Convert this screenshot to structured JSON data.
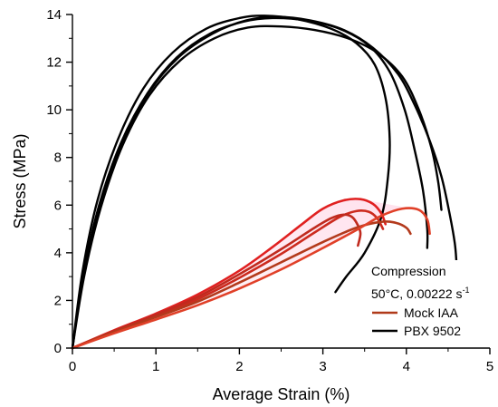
{
  "chart_data": {
    "type": "line",
    "xlabel": "Average Strain (%)",
    "ylabel": "Stress (MPa)",
    "xlim": [
      0,
      5
    ],
    "ylim": [
      0,
      14
    ],
    "xticks": [
      0,
      1,
      2,
      3,
      4,
      5
    ],
    "yticks": [
      0,
      2,
      4,
      6,
      8,
      10,
      12,
      14
    ],
    "xtick_labels": [
      "0",
      "1",
      "2",
      "3",
      "4",
      "5"
    ],
    "ytick_labels": [
      "0",
      "2",
      "4",
      "6",
      "8",
      "10",
      "12",
      "14"
    ],
    "grid": false,
    "legend": {
      "placement": "bottom-right",
      "title_line1": "Compression",
      "title_line2_main": "50°C, 0.00222 s",
      "title_line2_sup": "-1",
      "entries": [
        {
          "label": "Mock IAA",
          "color": "#b03a1a"
        },
        {
          "label": "PBX 9502",
          "color": "#000000"
        }
      ]
    },
    "series": [
      {
        "name": "PBX 9502",
        "color": "#000000",
        "points": [
          [
            0,
            0
          ],
          [
            0.12,
            3.2
          ],
          [
            0.3,
            6.2
          ],
          [
            0.55,
            8.8
          ],
          [
            0.85,
            10.9
          ],
          [
            1.2,
            12.4
          ],
          [
            1.6,
            13.4
          ],
          [
            2.0,
            13.85
          ],
          [
            2.3,
            13.95
          ],
          [
            2.7,
            13.8
          ],
          [
            3.1,
            13.4
          ],
          [
            3.4,
            12.8
          ],
          [
            3.62,
            11.9
          ],
          [
            3.75,
            10.5
          ],
          [
            3.8,
            8.8
          ],
          [
            3.78,
            7.2
          ],
          [
            3.7,
            5.5
          ],
          [
            3.5,
            4.0
          ],
          [
            3.28,
            3.0
          ],
          [
            3.15,
            2.35
          ]
        ]
      },
      {
        "name": "PBX 9502",
        "color": "#000000",
        "points": [
          [
            0,
            0
          ],
          [
            0.13,
            3.1
          ],
          [
            0.32,
            6.0
          ],
          [
            0.58,
            8.6
          ],
          [
            0.9,
            10.7
          ],
          [
            1.25,
            12.2
          ],
          [
            1.65,
            13.2
          ],
          [
            2.05,
            13.7
          ],
          [
            2.4,
            13.85
          ],
          [
            2.8,
            13.75
          ],
          [
            3.2,
            13.4
          ],
          [
            3.55,
            12.7
          ],
          [
            3.8,
            11.6
          ],
          [
            3.98,
            10.0
          ],
          [
            4.1,
            8.3
          ],
          [
            4.2,
            6.6
          ],
          [
            4.25,
            5.0
          ],
          [
            4.25,
            4.2
          ]
        ]
      },
      {
        "name": "PBX 9502",
        "color": "#000000",
        "points": [
          [
            0,
            0
          ],
          [
            0.14,
            3.0
          ],
          [
            0.34,
            5.9
          ],
          [
            0.6,
            8.5
          ],
          [
            0.92,
            10.6
          ],
          [
            1.3,
            12.1
          ],
          [
            1.7,
            13.0
          ],
          [
            2.1,
            13.45
          ],
          [
            2.5,
            13.5
          ],
          [
            2.9,
            13.35
          ],
          [
            3.3,
            13.0
          ],
          [
            3.65,
            12.4
          ],
          [
            3.95,
            11.4
          ],
          [
            4.15,
            10.0
          ],
          [
            4.3,
            8.4
          ],
          [
            4.38,
            7.0
          ],
          [
            4.42,
            5.8
          ]
        ]
      },
      {
        "name": "PBX 9502",
        "color": "#000000",
        "points": [
          [
            0,
            0
          ],
          [
            0.13,
            3.1
          ],
          [
            0.33,
            6.0
          ],
          [
            0.59,
            8.6
          ],
          [
            0.91,
            10.7
          ],
          [
            1.27,
            12.2
          ],
          [
            1.68,
            13.2
          ],
          [
            2.08,
            13.75
          ],
          [
            2.45,
            13.9
          ],
          [
            2.85,
            13.75
          ],
          [
            3.25,
            13.35
          ],
          [
            3.6,
            12.6
          ],
          [
            3.9,
            11.5
          ],
          [
            4.1,
            10.2
          ],
          [
            4.28,
            8.7
          ],
          [
            4.42,
            7.2
          ],
          [
            4.52,
            5.6
          ],
          [
            4.58,
            4.4
          ],
          [
            4.6,
            3.6
          ]
        ]
      },
      {
        "name": "Mock IAA",
        "color": "#cc2a1e",
        "points": [
          [
            0,
            0
          ],
          [
            0.5,
            0.7
          ],
          [
            1.0,
            1.35
          ],
          [
            1.5,
            2.05
          ],
          [
            2.0,
            2.95
          ],
          [
            2.5,
            3.95
          ],
          [
            2.9,
            4.85
          ],
          [
            3.2,
            5.5
          ],
          [
            3.4,
            5.75
          ],
          [
            3.55,
            5.72
          ],
          [
            3.65,
            5.45
          ],
          [
            3.72,
            5.0
          ]
        ]
      },
      {
        "name": "Mock IAA",
        "color": "#e02020",
        "points": [
          [
            0,
            0
          ],
          [
            0.5,
            0.75
          ],
          [
            1.0,
            1.45
          ],
          [
            1.5,
            2.25
          ],
          [
            2.0,
            3.25
          ],
          [
            2.4,
            4.25
          ],
          [
            2.75,
            5.2
          ],
          [
            3.0,
            5.85
          ],
          [
            3.25,
            6.2
          ],
          [
            3.45,
            6.25
          ],
          [
            3.6,
            6.05
          ],
          [
            3.7,
            5.65
          ],
          [
            3.75,
            5.2
          ]
        ]
      },
      {
        "name": "Mock IAA",
        "color": "#c02a1e",
        "points": [
          [
            0,
            0
          ],
          [
            0.5,
            0.72
          ],
          [
            1.0,
            1.4
          ],
          [
            1.5,
            2.15
          ],
          [
            2.0,
            3.1
          ],
          [
            2.5,
            4.15
          ],
          [
            2.9,
            5.05
          ],
          [
            3.1,
            5.45
          ],
          [
            3.25,
            5.6
          ],
          [
            3.35,
            5.5
          ],
          [
            3.42,
            5.15
          ],
          [
            3.45,
            4.8
          ],
          [
            3.42,
            4.3
          ]
        ]
      },
      {
        "name": "Mock IAA",
        "color": "#b33a1c",
        "points": [
          [
            0,
            0
          ],
          [
            0.5,
            0.68
          ],
          [
            1.0,
            1.3
          ],
          [
            1.5,
            1.95
          ],
          [
            2.0,
            2.75
          ],
          [
            2.5,
            3.6
          ],
          [
            3.0,
            4.45
          ],
          [
            3.4,
            5.05
          ],
          [
            3.7,
            5.3
          ],
          [
            3.88,
            5.25
          ],
          [
            4.0,
            5.05
          ],
          [
            4.05,
            4.8
          ]
        ]
      },
      {
        "name": "Mock IAA",
        "color": "#e04028",
        "points": [
          [
            0,
            0
          ],
          [
            0.5,
            0.62
          ],
          [
            1.0,
            1.2
          ],
          [
            1.5,
            1.8
          ],
          [
            2.0,
            2.5
          ],
          [
            2.5,
            3.3
          ],
          [
            3.0,
            4.2
          ],
          [
            3.4,
            4.95
          ],
          [
            3.7,
            5.55
          ],
          [
            3.95,
            5.85
          ],
          [
            4.15,
            5.8
          ],
          [
            4.25,
            5.4
          ],
          [
            4.28,
            4.8
          ]
        ]
      }
    ]
  }
}
